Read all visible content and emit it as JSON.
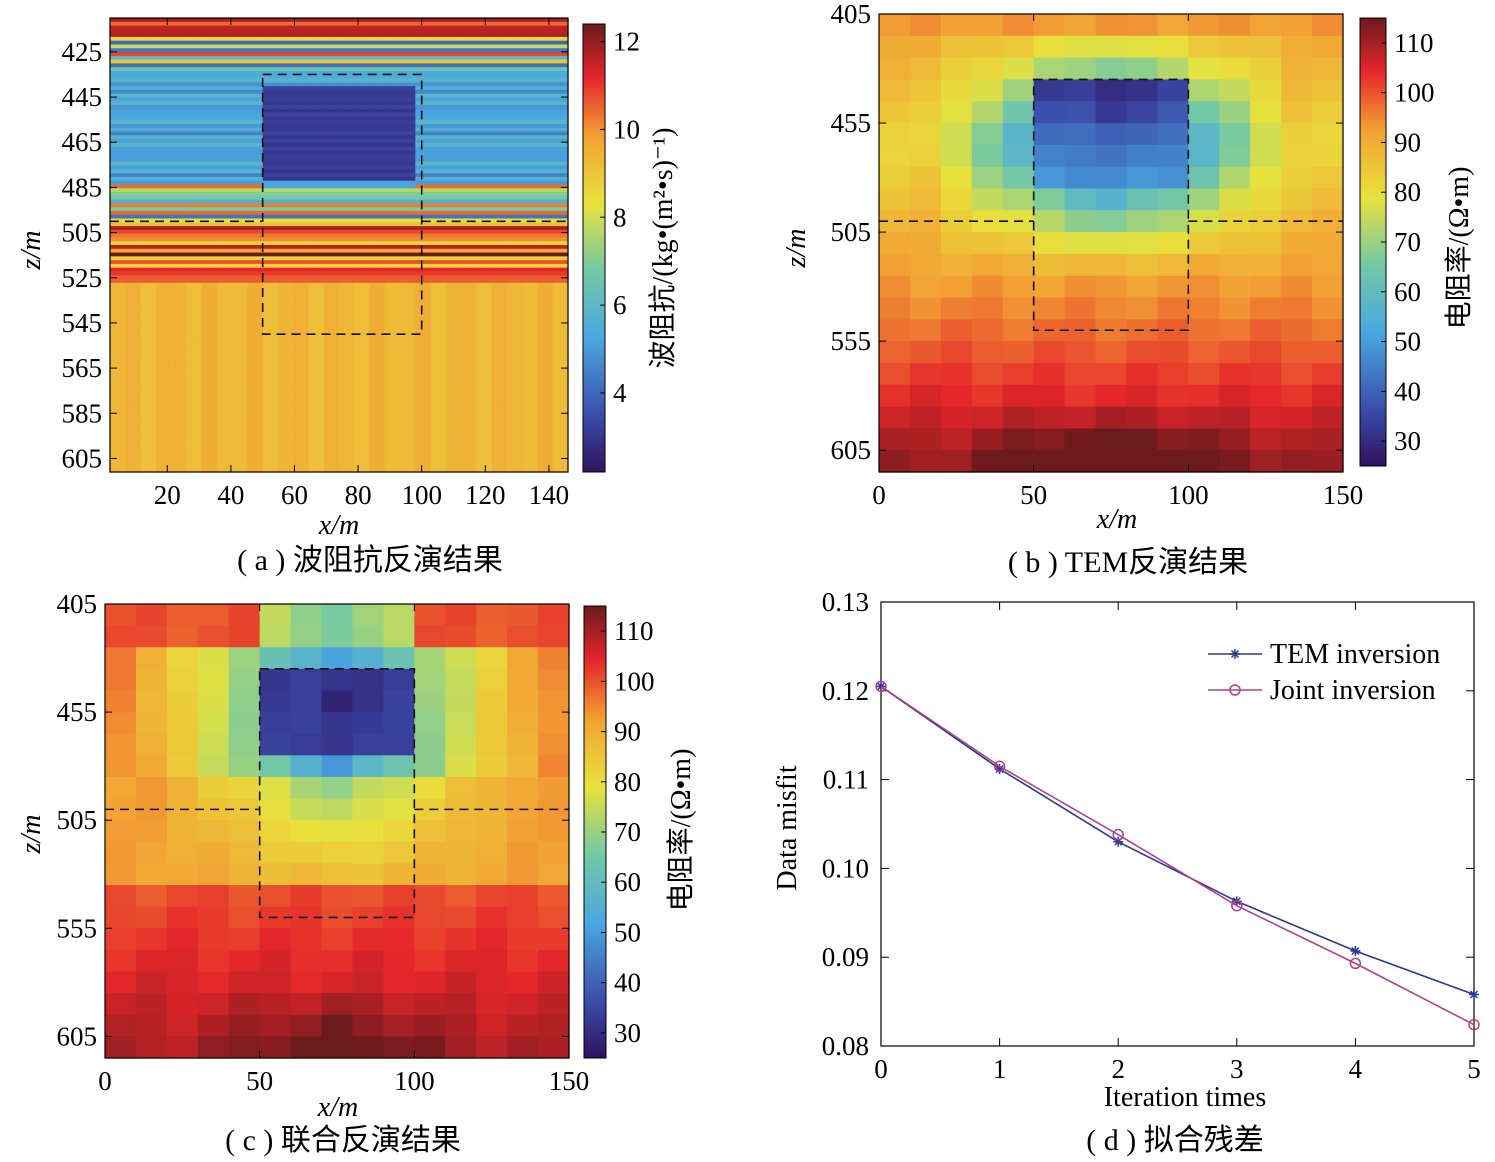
{
  "chart_data": [
    {
      "type": "heatmap",
      "caption": "( a ) 波阻抗反演结果",
      "xlabel": "x/m",
      "ylabel": "z/m",
      "x_ticks": [
        "20",
        "40",
        "60",
        "80",
        "100",
        "120",
        "140"
      ],
      "x_tick_values": [
        20,
        40,
        60,
        80,
        100,
        120,
        140
      ],
      "xlim": [
        2,
        146
      ],
      "y_ticks": [
        "425",
        "445",
        "465",
        "485",
        "505",
        "525",
        "545",
        "565",
        "585",
        "605"
      ],
      "y_tick_values": [
        425,
        445,
        465,
        485,
        505,
        525,
        545,
        565,
        585,
        605
      ],
      "ylim": [
        410,
        611
      ],
      "colorbar": {
        "label": "波阻抗/(kg•(m²•s)⁻¹)",
        "ticks": [
          "4",
          "6",
          "8",
          "10",
          "12"
        ],
        "tick_values": [
          4,
          6,
          8,
          10,
          12
        ],
        "range": [
          2.2,
          12.4
        ]
      },
      "anomaly_box": {
        "x": [
          50,
          100
        ],
        "z": [
          435,
          550
        ]
      },
      "interface_z": 500,
      "description": "layered impedance: high at top, mid band ~5, block ~3 at x 50-100 z 440-482, bright layers near 485-525, ~9.5 below"
    },
    {
      "type": "heatmap",
      "caption": "( b ) TEM反演结果",
      "xlabel": "x/m",
      "ylabel": "z/m",
      "x_ticks": [
        "0",
        "50",
        "100",
        "150"
      ],
      "x_tick_values": [
        0,
        50,
        100,
        150
      ],
      "xlim": [
        0,
        150
      ],
      "y_ticks": [
        "405",
        "455",
        "505",
        "555",
        "605"
      ],
      "y_tick_values": [
        405,
        455,
        505,
        555,
        605
      ],
      "ylim": [
        405,
        615
      ],
      "colorbar": {
        "label": "电阻率/(Ω•m)",
        "ticks": [
          "30",
          "40",
          "50",
          "60",
          "70",
          "80",
          "90",
          "100",
          "110"
        ],
        "tick_values": [
          30,
          40,
          50,
          60,
          70,
          80,
          90,
          100,
          110
        ],
        "range": [
          25,
          115
        ]
      },
      "anomaly_box": {
        "x": [
          50,
          100
        ],
        "z": [
          435,
          550
        ]
      },
      "interface_z": 500
    },
    {
      "type": "heatmap",
      "caption": "( c ) 联合反演结果",
      "xlabel": "x/m",
      "ylabel": "z/m",
      "x_ticks": [
        "0",
        "50",
        "100",
        "150"
      ],
      "x_tick_values": [
        0,
        50,
        100,
        150
      ],
      "xlim": [
        0,
        150
      ],
      "y_ticks": [
        "405",
        "455",
        "505",
        "555",
        "605"
      ],
      "y_tick_values": [
        405,
        455,
        505,
        555,
        605
      ],
      "ylim": [
        405,
        615
      ],
      "colorbar": {
        "label": "电阻率/(Ω•m)",
        "ticks": [
          "30",
          "40",
          "50",
          "60",
          "70",
          "80",
          "90",
          "100",
          "110"
        ],
        "tick_values": [
          30,
          40,
          50,
          60,
          70,
          80,
          90,
          100,
          110
        ],
        "range": [
          25,
          115
        ]
      },
      "anomaly_box": {
        "x": [
          50,
          100
        ],
        "z": [
          435,
          550
        ]
      },
      "interface_z": 500
    },
    {
      "type": "line",
      "caption": "( d ) 拟合残差",
      "xlabel": "Iteration times",
      "ylabel": "Data misfit",
      "x": [
        0,
        1,
        2,
        3,
        4,
        5
      ],
      "x_ticks": [
        "0",
        "1",
        "2",
        "3",
        "4",
        "5"
      ],
      "y_ticks": [
        "0.08",
        "0.09",
        "0.10",
        "0.11",
        "0.12",
        "0.13"
      ],
      "y_tick_values": [
        0.08,
        0.09,
        0.1,
        0.11,
        0.12,
        0.13
      ],
      "xlim": [
        0,
        5
      ],
      "ylim": [
        0.08,
        0.13
      ],
      "grid": false,
      "legend_position": "top-right",
      "series": [
        {
          "name": "TEM inversion",
          "color": "#2b3990",
          "marker": "star",
          "values": [
            0.1205,
            0.1112,
            0.103,
            0.0963,
            0.0907,
            0.0858
          ]
        },
        {
          "name": "Joint inversion",
          "color": "#b0418f",
          "marker": "circle",
          "values": [
            0.1205,
            0.1115,
            0.1038,
            0.0958,
            0.0893,
            0.0824
          ]
        }
      ]
    }
  ]
}
